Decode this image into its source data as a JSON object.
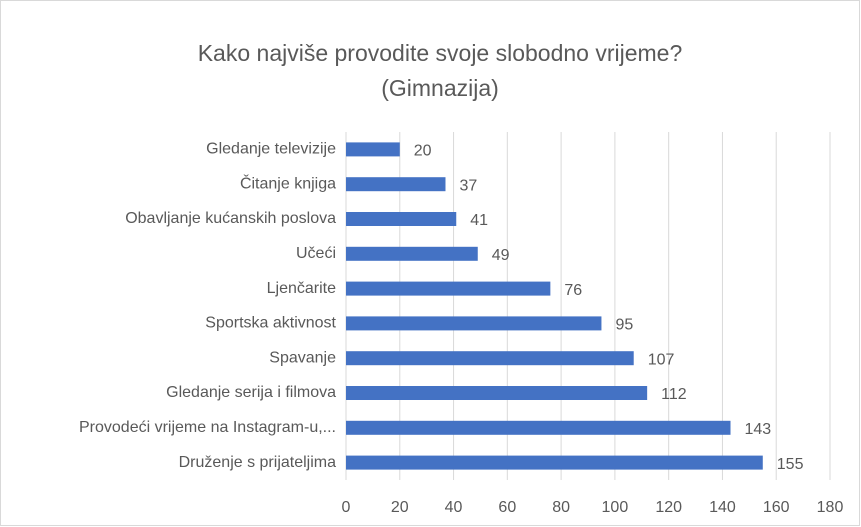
{
  "chart_data": {
    "type": "bar",
    "orientation": "horizontal",
    "title": [
      "Kako najviše provodite svoje slobodno vrijeme?",
      "(Gimnazija)"
    ],
    "categories": [
      "Gledanje televizije",
      "Čitanje knjiga",
      "Obavljanje kućanskih poslova",
      "Učeći",
      "Ljenčarite",
      "Sportska aktivnost",
      "Spavanje",
      "Gledanje serija i filmova",
      "Provodeći vrijeme na Instagram-u,...",
      "Druženje s prijateljima"
    ],
    "values": [
      20,
      37,
      41,
      49,
      76,
      95,
      107,
      112,
      143,
      155
    ],
    "color": "#4472c4",
    "xlim": [
      0,
      180
    ],
    "xticks": [
      0,
      20,
      40,
      60,
      80,
      100,
      120,
      140,
      160,
      180
    ],
    "grid": true
  }
}
